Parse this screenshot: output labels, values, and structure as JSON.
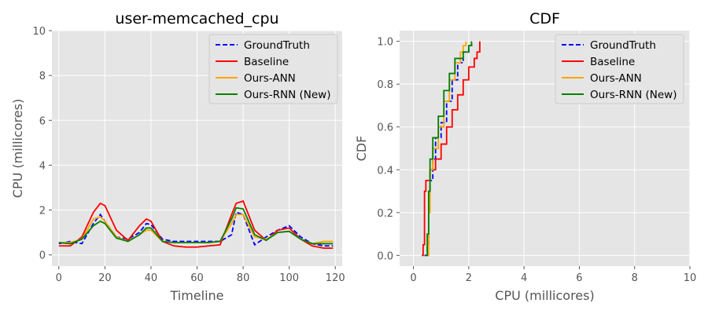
{
  "chart_data": [
    {
      "type": "line",
      "title": "user-memcached_cpu",
      "xlabel": "Timeline",
      "ylabel": "CPU (millicores)",
      "xlim": [
        -3,
        123
      ],
      "ylim": [
        -0.5,
        10
      ],
      "xticks": [
        0,
        20,
        40,
        60,
        80,
        100,
        120
      ],
      "yticks": [
        0,
        2,
        4,
        6,
        8,
        10
      ],
      "grid": true,
      "legend_position": "top-right",
      "x": [
        0,
        5,
        10,
        15,
        18,
        20,
        25,
        30,
        35,
        38,
        40,
        45,
        50,
        55,
        60,
        65,
        70,
        75,
        77,
        80,
        85,
        90,
        95,
        100,
        105,
        110,
        115,
        119
      ],
      "series": [
        {
          "name": "GroundTruth",
          "color": "#0000ff",
          "dash": true,
          "values": [
            0.5,
            0.6,
            0.5,
            1.4,
            1.8,
            1.5,
            0.8,
            0.7,
            1.0,
            1.4,
            1.35,
            0.7,
            0.6,
            0.6,
            0.6,
            0.6,
            0.6,
            0.9,
            1.9,
            1.8,
            0.45,
            0.8,
            1.1,
            1.3,
            0.8,
            0.5,
            0.4,
            0.4
          ]
        },
        {
          "name": "Baseline",
          "color": "#ff0000",
          "dash": false,
          "values": [
            0.4,
            0.4,
            0.8,
            1.9,
            2.3,
            2.2,
            1.1,
            0.65,
            1.3,
            1.6,
            1.5,
            0.6,
            0.4,
            0.35,
            0.35,
            0.4,
            0.45,
            1.8,
            2.3,
            2.4,
            1.1,
            0.65,
            1.1,
            1.2,
            0.7,
            0.4,
            0.3,
            0.3
          ]
        },
        {
          "name": "Ours-ANN",
          "color": "#ffa500",
          "dash": false,
          "values": [
            0.55,
            0.55,
            0.7,
            1.6,
            1.7,
            1.5,
            0.8,
            0.6,
            0.9,
            1.1,
            1.1,
            0.6,
            0.55,
            0.55,
            0.55,
            0.55,
            0.6,
            1.4,
            1.8,
            1.8,
            0.8,
            0.7,
            1.0,
            1.05,
            0.7,
            0.5,
            0.6,
            0.6
          ]
        },
        {
          "name": "Ours-RNN (New)",
          "color": "#008000",
          "dash": false,
          "values": [
            0.55,
            0.5,
            0.7,
            1.3,
            1.5,
            1.4,
            0.75,
            0.6,
            0.9,
            1.2,
            1.2,
            0.6,
            0.55,
            0.55,
            0.55,
            0.55,
            0.6,
            1.6,
            2.1,
            2.05,
            0.9,
            0.65,
            1.0,
            1.05,
            0.7,
            0.5,
            0.5,
            0.5
          ]
        }
      ]
    },
    {
      "type": "line",
      "title": "CDF",
      "xlabel": "CPU (millicores)",
      "ylabel": "CDF",
      "xlim": [
        -0.5,
        10
      ],
      "ylim": [
        -0.05,
        1.05
      ],
      "xticks": [
        0,
        2,
        4,
        6,
        8,
        10
      ],
      "yticks": [
        0.0,
        0.2,
        0.4,
        0.6,
        0.8,
        1.0
      ],
      "ytick_labels": [
        "0.0",
        "0.2",
        "0.4",
        "0.6",
        "0.8",
        "1.0"
      ],
      "grid": true,
      "legend_position": "top-right",
      "series": [
        {
          "name": "GroundTruth",
          "color": "#0000ff",
          "dash": true,
          "x": [
            0.4,
            0.5,
            0.55,
            0.6,
            0.7,
            0.8,
            1.0,
            1.2,
            1.4,
            1.6,
            1.8,
            2.0,
            2.1
          ],
          "y": [
            0.0,
            0.05,
            0.3,
            0.35,
            0.45,
            0.55,
            0.62,
            0.72,
            0.82,
            0.9,
            0.95,
            0.98,
            1.0
          ]
        },
        {
          "name": "Baseline",
          "color": "#ff0000",
          "dash": false,
          "x": [
            0.3,
            0.35,
            0.4,
            0.45,
            0.6,
            0.8,
            1.0,
            1.2,
            1.4,
            1.6,
            1.8,
            2.0,
            2.2,
            2.3,
            2.4
          ],
          "y": [
            0.0,
            0.05,
            0.3,
            0.35,
            0.4,
            0.45,
            0.52,
            0.6,
            0.68,
            0.75,
            0.82,
            0.88,
            0.92,
            0.95,
            1.0
          ]
        },
        {
          "name": "Ours-ANN",
          "color": "#ffa500",
          "dash": false,
          "x": [
            0.5,
            0.55,
            0.6,
            0.7,
            0.9,
            1.1,
            1.3,
            1.5,
            1.7,
            1.8,
            1.9
          ],
          "y": [
            0.0,
            0.2,
            0.4,
            0.5,
            0.6,
            0.72,
            0.82,
            0.9,
            0.95,
            0.98,
            1.0
          ]
        },
        {
          "name": "Ours-RNN (New)",
          "color": "#008000",
          "dash": false,
          "x": [
            0.45,
            0.5,
            0.55,
            0.6,
            0.7,
            0.9,
            1.1,
            1.3,
            1.5,
            1.8,
            2.0,
            2.1
          ],
          "y": [
            0.0,
            0.1,
            0.3,
            0.45,
            0.55,
            0.65,
            0.77,
            0.85,
            0.92,
            0.95,
            0.98,
            1.0
          ]
        }
      ]
    }
  ]
}
